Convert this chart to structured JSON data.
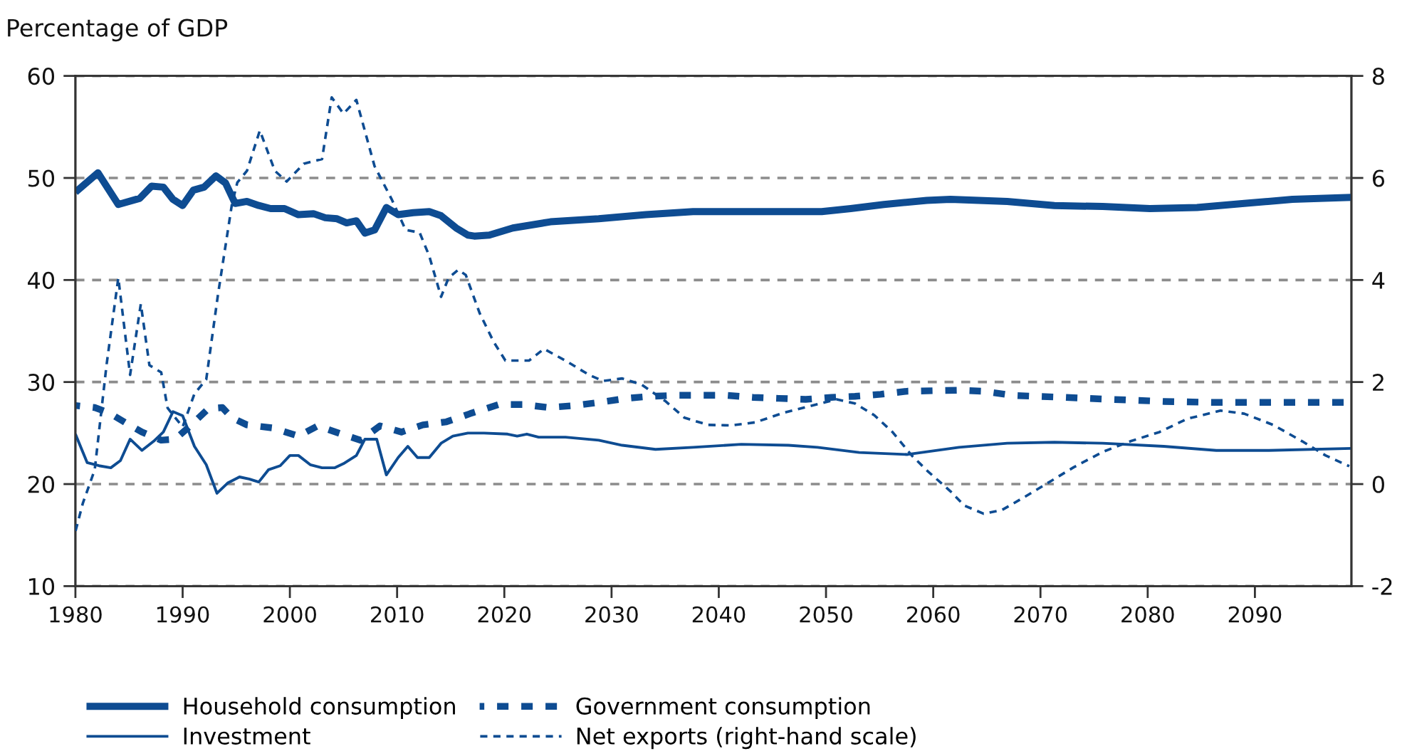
{
  "chart_data": {
    "type": "line",
    "ylabel": "Percentage of GDP",
    "xlim": [
      1980,
      2099
    ],
    "xticks": [
      1980,
      1990,
      2000,
      2010,
      2020,
      2030,
      2040,
      2050,
      2060,
      2070,
      2080,
      2090
    ],
    "ylim": [
      10,
      60
    ],
    "yticks": [
      10,
      20,
      30,
      40,
      50,
      60
    ],
    "y2lim": [
      -2,
      8
    ],
    "y2ticks": [
      -2,
      0,
      2,
      4,
      6,
      8
    ],
    "grid": "y",
    "legend": "bottom",
    "series": [
      {
        "name": "Household consumption",
        "color": "#0e4c92",
        "line_style": "solid",
        "axis": "y",
        "x": [
          1980,
          1982.1,
          1984,
          1986,
          1987.1,
          1988.2,
          1989.1,
          1990,
          1991,
          1992,
          1993.1,
          1994,
          1994.9,
          1996,
          1997.1,
          1998.2,
          1999.5,
          2000.8,
          2002.2,
          2003.3,
          2004.4,
          2005.3,
          2006.2,
          2007,
          2007.9,
          2009,
          2010.1,
          2011.5,
          2013,
          2014.1,
          2015.5,
          2016.6,
          2017.2,
          2018.6,
          2020.8,
          2024.3,
          2028.8,
          2033.2,
          2037.6,
          2042.1,
          2046.5,
          2049.6,
          2052.3,
          2055.4,
          2059.4,
          2061.6,
          2066.9,
          2071.3,
          2075.8,
          2080.2,
          2084.6,
          2089,
          2093.5,
          2099
        ],
        "values": [
          48.6,
          50.5,
          47.4,
          48.0,
          49.2,
          49.1,
          47.9,
          47.3,
          48.8,
          49.1,
          50.2,
          49.5,
          47.5,
          47.7,
          47.3,
          47.0,
          47.0,
          46.4,
          46.5,
          46.1,
          46.0,
          45.6,
          45.8,
          44.6,
          44.9,
          47.1,
          46.4,
          46.6,
          46.7,
          46.3,
          45.1,
          44.4,
          44.3,
          44.4,
          45.1,
          45.7,
          46.0,
          46.4,
          46.7,
          46.7,
          46.7,
          46.7,
          47.0,
          47.4,
          47.8,
          47.9,
          47.7,
          47.3,
          47.2,
          47.0,
          47.1,
          47.5,
          47.9,
          48.1
        ]
      },
      {
        "name": "Investment",
        "color": "#0e4c92",
        "line_style": "solid",
        "axis": "y",
        "x": [
          1980,
          1981.1,
          1982.2,
          1983.3,
          1984.2,
          1985.1,
          1986.2,
          1987.3,
          1988.2,
          1989.1,
          1990,
          1991.1,
          1992.2,
          1993.2,
          1994.2,
          1995.3,
          1996.2,
          1997.1,
          1998,
          1999.1,
          2000,
          2000.8,
          2001.9,
          2003,
          2004.2,
          2005,
          2006.2,
          2007,
          2008.1,
          2009,
          2010.1,
          2011,
          2011.9,
          2013,
          2014.1,
          2015.2,
          2016.6,
          2018.1,
          2020.3,
          2021.2,
          2022.1,
          2023.2,
          2025.7,
          2028.8,
          2031,
          2034.1,
          2037.6,
          2042.1,
          2046.5,
          2049.2,
          2053.1,
          2057.6,
          2062.4,
          2066.9,
          2071.3,
          2075.8,
          2081.5,
          2086.4,
          2091.3,
          2099
        ],
        "values": [
          24.9,
          22.1,
          21.8,
          21.6,
          22.3,
          24.4,
          23.3,
          24.2,
          25.1,
          27.1,
          26.7,
          23.7,
          21.9,
          19.1,
          20.1,
          20.7,
          20.5,
          20.2,
          21.4,
          21.8,
          22.8,
          22.8,
          21.9,
          21.6,
          21.6,
          22.0,
          22.8,
          24.4,
          24.4,
          20.9,
          22.6,
          23.7,
          22.6,
          22.6,
          24.0,
          24.7,
          25.0,
          25.0,
          24.9,
          24.7,
          24.9,
          24.6,
          24.6,
          24.3,
          23.8,
          23.4,
          23.6,
          23.9,
          23.8,
          23.6,
          23.1,
          22.9,
          23.6,
          24.0,
          24.1,
          24.0,
          23.7,
          23.3,
          23.3,
          23.5
        ]
      },
      {
        "name": "Government consumption",
        "color": "#0e4c92",
        "line_style": "dashed",
        "axis": "y",
        "x": [
          1980,
          1981.8,
          1983.1,
          1984.7,
          1986.2,
          1988,
          1989.3,
          1990.6,
          1992.4,
          1993.7,
          1994.6,
          1996,
          1998.4,
          2000.8,
          2002.6,
          2004.8,
          2006.6,
          2008.4,
          2010.4,
          2012.4,
          2014.6,
          2016.8,
          2019.5,
          2021.7,
          2024.1,
          2026.6,
          2028.8,
          2031.4,
          2033.6,
          2036.1,
          2040.7,
          2043.2,
          2045.6,
          2048.1,
          2050.5,
          2052.7,
          2055.1,
          2057.6,
          2062.4,
          2064.7,
          2067.3,
          2069.5,
          2072.2,
          2076.6,
          2081.5,
          2086.4,
          2091.3,
          2099
        ],
        "values": [
          27.7,
          27.5,
          27.0,
          26.0,
          25.1,
          24.3,
          24.4,
          25.6,
          27.4,
          27.5,
          26.5,
          25.8,
          25.5,
          24.7,
          25.7,
          24.9,
          24.3,
          25.7,
          25.1,
          25.8,
          26.1,
          26.9,
          27.8,
          27.8,
          27.5,
          27.7,
          28.0,
          28.4,
          28.6,
          28.7,
          28.7,
          28.5,
          28.4,
          28.3,
          28.5,
          28.6,
          28.8,
          29.1,
          29.2,
          29.1,
          28.7,
          28.6,
          28.5,
          28.3,
          28.1,
          28.0,
          28.0,
          28.0
        ]
      },
      {
        "name": "Net exports (right-hand scale)",
        "color": "#0e4c92",
        "line_style": "dashed",
        "axis": "y2",
        "x": [
          1980,
          1980.7,
          1981.8,
          1982.9,
          1984,
          1985.1,
          1986.1,
          1986.9,
          1988,
          1988.6,
          1990,
          1991.1,
          1992.2,
          1993.3,
          1994.6,
          1995.1,
          1996,
          1997.2,
          1998.6,
          1999.7,
          2001.3,
          2003,
          2003.9,
          2005,
          2006.2,
          2007.9,
          2009.5,
          2010.8,
          2012.1,
          2013,
          2014.1,
          2014.8,
          2015.7,
          2016.4,
          2017.7,
          2019,
          2020.1,
          2021.2,
          2022.3,
          2023.7,
          2025.7,
          2027.9,
          2029.2,
          2031,
          2032.8,
          2035,
          2036.8,
          2039,
          2041.2,
          2043.4,
          2046.1,
          2048.7,
          2051,
          2052.7,
          2054.5,
          2056.2,
          2058,
          2059.5,
          2061.6,
          2062.9,
          2064.7,
          2066.4,
          2068.7,
          2070.9,
          2073.1,
          2075.8,
          2078.4,
          2081.1,
          2083.7,
          2086.8,
          2089,
          2091.7,
          2094.4,
          2096.6,
          2098.8
        ],
        "values": [
          -0.93,
          -0.37,
          0.28,
          2.33,
          4.04,
          2.14,
          3.53,
          2.33,
          2.19,
          1.49,
          1.12,
          1.77,
          2.05,
          3.72,
          5.49,
          5.91,
          6.14,
          6.93,
          6.14,
          5.93,
          6.28,
          6.37,
          7.58,
          7.26,
          7.53,
          6.23,
          5.58,
          4.98,
          4.93,
          4.47,
          3.67,
          4.04,
          4.2,
          4.1,
          3.35,
          2.79,
          2.42,
          2.42,
          2.42,
          2.65,
          2.42,
          2.14,
          2.02,
          2.07,
          1.95,
          1.63,
          1.3,
          1.16,
          1.15,
          1.21,
          1.4,
          1.54,
          1.66,
          1.58,
          1.35,
          1.02,
          0.56,
          0.25,
          -0.14,
          -0.42,
          -0.58,
          -0.51,
          -0.23,
          0.05,
          0.33,
          0.63,
          0.84,
          1.02,
          1.28,
          1.44,
          1.38,
          1.16,
          0.84,
          0.56,
          0.35
        ]
      }
    ]
  }
}
